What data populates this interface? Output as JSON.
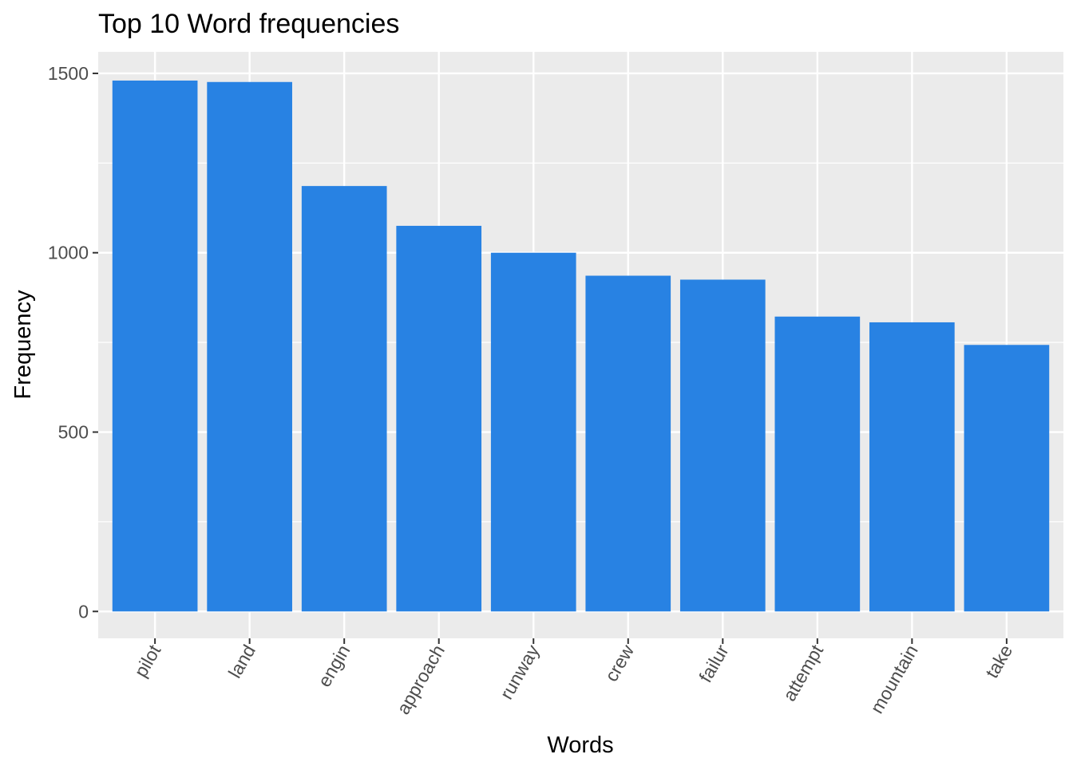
{
  "chart_data": {
    "type": "bar",
    "title": "Top 10 Word frequencies",
    "xlabel": "Words",
    "ylabel": "Frequency",
    "categories": [
      "pilot",
      "land",
      "engin",
      "approach",
      "runway",
      "crew",
      "failur",
      "attempt",
      "mountain",
      "take"
    ],
    "values": [
      1480,
      1476,
      1186,
      1075,
      1000,
      936,
      925,
      822,
      806,
      743
    ],
    "ylim": [
      -75,
      1560
    ],
    "yticks": [
      0,
      500,
      1000,
      1500
    ],
    "y_minor_ticks": [
      250,
      750,
      1250
    ],
    "grid": true,
    "legend": "none",
    "x_tick_rotation": -60,
    "colors": {
      "bar": "#2882e3",
      "panel": "#ebebeb",
      "grid": "#ffffff",
      "tick_text": "#4d4d4d",
      "tick_mark": "#333333"
    }
  }
}
